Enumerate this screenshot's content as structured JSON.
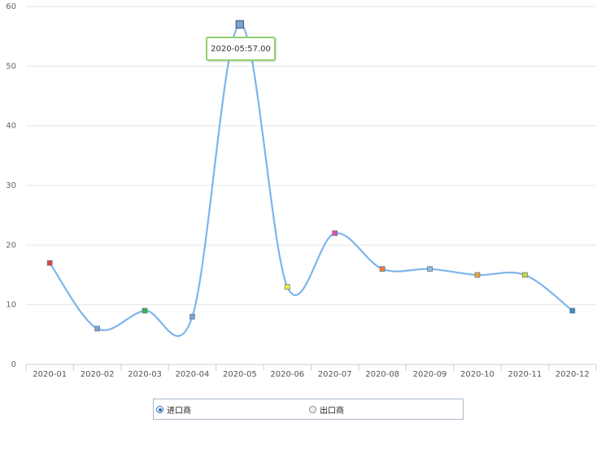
{
  "chart_data": {
    "type": "line",
    "categories": [
      "2020-01",
      "2020-02",
      "2020-03",
      "2020-04",
      "2020-05",
      "2020-06",
      "2020-07",
      "2020-08",
      "2020-09",
      "2020-10",
      "2020-11",
      "2020-12"
    ],
    "series": [
      {
        "values": [
          17,
          6,
          9,
          8,
          57,
          13,
          22,
          16,
          16,
          15,
          15,
          9
        ],
        "color": "#7cb5ec",
        "marker_colors": [
          "#e8433c",
          "#7aa6d6",
          "#3cb34a",
          "#7aa6d6",
          "#7aa6d6",
          "#f5ee3a",
          "#e34fa8",
          "#ef7d2c",
          "#9ab9d8",
          "#f0a030",
          "#c7dd2f",
          "#3a8fb7"
        ]
      }
    ],
    "yticks": [
      0,
      10,
      20,
      30,
      40,
      50,
      60
    ],
    "ylim": [
      0,
      60
    ],
    "grid": true,
    "tooltip": "2020-05:57.00"
  },
  "legend": {
    "options": [
      {
        "label": "进口商",
        "selected": true
      },
      {
        "label": "出口商",
        "selected": false
      }
    ]
  }
}
